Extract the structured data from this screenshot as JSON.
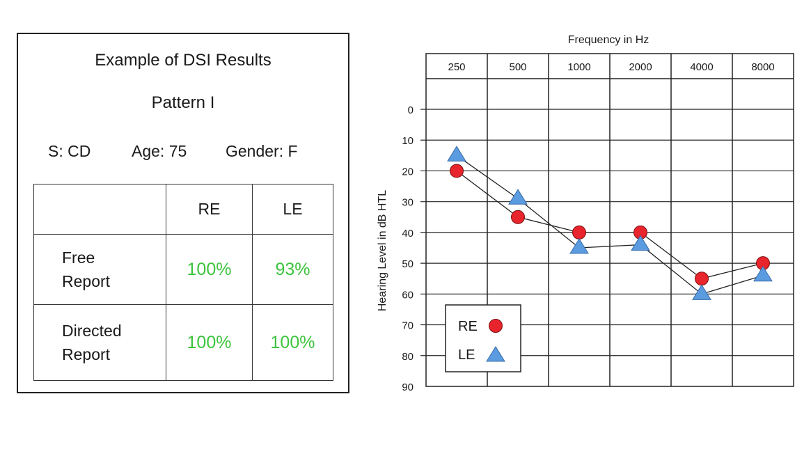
{
  "table_panel": {
    "title": "Example of DSI Results",
    "pattern": "Pattern I",
    "subject": "S: CD",
    "age": "Age: 75",
    "gender": "Gender: F",
    "columns": [
      "RE",
      "LE"
    ],
    "rows": [
      {
        "label_line1": "Free",
        "label_line2": "Report",
        "re": "100%",
        "le": "93%"
      },
      {
        "label_line1": "Directed",
        "label_line2": "Report",
        "re": "100%",
        "le": "100%"
      }
    ],
    "value_color": "#3cc43c"
  },
  "chart_data": {
    "type": "line",
    "xlabel": "Frequency in Hz",
    "ylabel": "Hearing Level in dB HTL",
    "categories": [
      "250",
      "500",
      "1000",
      "2000",
      "4000",
      "8000"
    ],
    "ylim": [
      0,
      90
    ],
    "y_ticks": [
      "0",
      "10",
      "20",
      "30",
      "40",
      "50",
      "60",
      "70",
      "80",
      "90"
    ],
    "y_inverted": true,
    "grid": true,
    "legend_position": "bottom-left",
    "series": [
      {
        "name": "RE",
        "marker": "circle",
        "color": "#e8242c",
        "values": [
          20,
          35,
          40,
          40,
          55,
          50
        ]
      },
      {
        "name": "LE",
        "marker": "triangle",
        "color": "#5b9be0",
        "values": [
          15,
          29,
          45,
          44,
          60,
          54
        ]
      }
    ]
  }
}
